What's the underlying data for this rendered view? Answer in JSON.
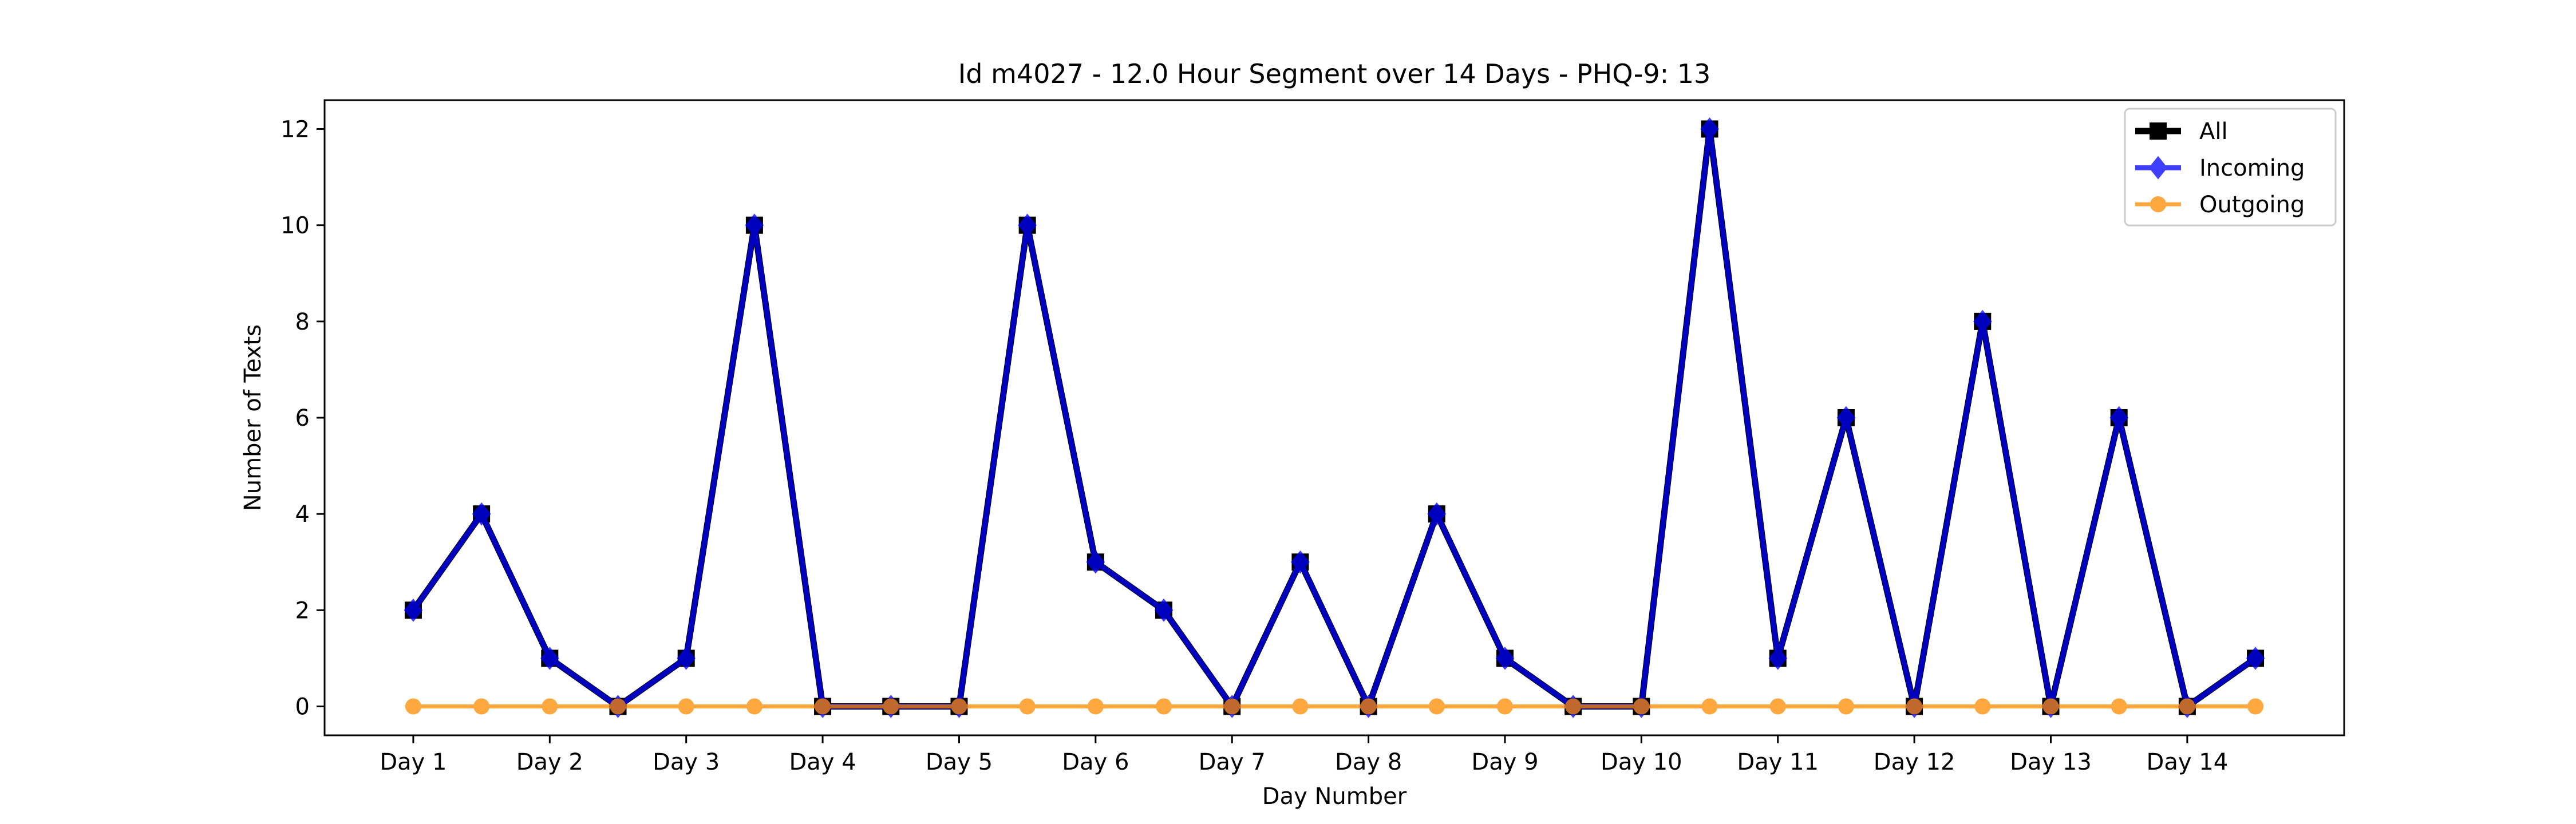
{
  "chart_data": {
    "type": "line",
    "title": "Id m4027 - 12.0 Hour Segment over 14 Days - PHQ-9: 13",
    "xlabel": "Day Number",
    "ylabel": "Number of Texts",
    "x_tick_labels": [
      "Day 1",
      "Day 2",
      "Day 3",
      "Day 4",
      "Day 5",
      "Day 6",
      "Day 7",
      "Day 8",
      "Day 9",
      "Day 10",
      "Day 11",
      "Day 12",
      "Day 13",
      "Day 14"
    ],
    "y_ticks": [
      0,
      2,
      4,
      6,
      8,
      10,
      12
    ],
    "ylim": [
      -0.6,
      12.6
    ],
    "xlim": [
      0.35,
      15.15
    ],
    "grid": false,
    "legend_position": "top-right",
    "x": [
      1,
      1.5,
      2,
      2.5,
      3,
      3.5,
      4,
      4.5,
      5,
      5.5,
      6,
      6.5,
      7,
      7.5,
      8,
      8.5,
      9,
      9.5,
      10,
      10.5,
      11,
      11.5,
      12,
      12.5,
      13,
      13.5,
      14,
      14.5
    ],
    "series": [
      {
        "name": "All",
        "color": "#000000",
        "marker": "square",
        "values": [
          2,
          4,
          1,
          0,
          1,
          10,
          0,
          0,
          0,
          10,
          3,
          2,
          0,
          3,
          0,
          4,
          1,
          0,
          0,
          12,
          1,
          6,
          0,
          8,
          0,
          6,
          0,
          1
        ]
      },
      {
        "name": "Incoming",
        "color": "#0000ff",
        "marker": "diamond",
        "values": [
          2,
          4,
          1,
          0,
          1,
          10,
          0,
          0,
          0,
          10,
          3,
          2,
          0,
          3,
          0,
          4,
          1,
          0,
          0,
          12,
          1,
          6,
          0,
          8,
          0,
          6,
          0,
          1
        ]
      },
      {
        "name": "Outgoing",
        "color": "#ff8c00",
        "marker": "circle",
        "values": [
          0,
          0,
          0,
          0,
          0,
          0,
          0,
          0,
          0,
          0,
          0,
          0,
          0,
          0,
          0,
          0,
          0,
          0,
          0,
          0,
          0,
          0,
          0,
          0,
          0,
          0,
          0,
          0
        ]
      }
    ]
  }
}
